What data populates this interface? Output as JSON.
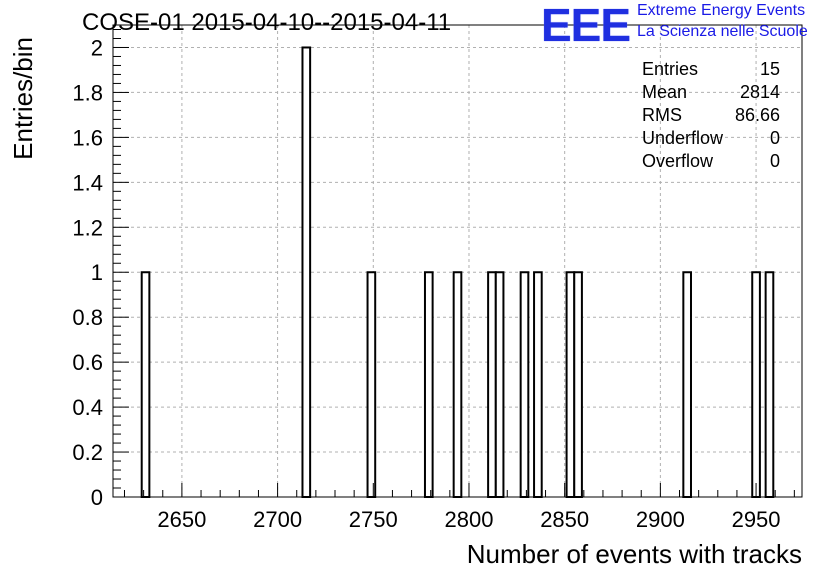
{
  "title": "COSE-01 2015-04-10--2015-04-11",
  "logo": {
    "mark": "EEE",
    "line1": "Extreme Energy Events",
    "line2": "La Scienza nelle Scuole"
  },
  "stats": [
    {
      "key": "Entries",
      "value": "15"
    },
    {
      "key": "Mean",
      "value": "2814"
    },
    {
      "key": "RMS",
      "value": "86.66"
    },
    {
      "key": "Underflow",
      "value": "0"
    },
    {
      "key": "Overflow",
      "value": "0"
    }
  ],
  "chart_data": {
    "type": "bar",
    "title": "COSE-01 2015-04-10--2015-04-11",
    "xlabel": "Number of events with tracks",
    "ylabel": "Entries/bin",
    "xlim": [
      2614,
      2974
    ],
    "ylim": [
      0,
      2.1
    ],
    "bin_width": 4,
    "grid": true,
    "xticks": [
      "2650",
      "2700",
      "2750",
      "2800",
      "2850",
      "2900",
      "2950"
    ],
    "yticks": [
      "0",
      "0.2",
      "0.4",
      "0.6",
      "0.8",
      "1",
      "1.2",
      "1.4",
      "1.6",
      "1.8",
      "2"
    ],
    "bins": [
      {
        "x": 2629,
        "count": 1
      },
      {
        "x": 2713,
        "count": 2
      },
      {
        "x": 2747,
        "count": 1
      },
      {
        "x": 2777,
        "count": 1
      },
      {
        "x": 2792,
        "count": 1
      },
      {
        "x": 2810,
        "count": 1
      },
      {
        "x": 2814,
        "count": 1
      },
      {
        "x": 2827,
        "count": 1
      },
      {
        "x": 2834,
        "count": 1
      },
      {
        "x": 2851,
        "count": 1
      },
      {
        "x": 2855,
        "count": 1
      },
      {
        "x": 2912,
        "count": 1
      },
      {
        "x": 2948,
        "count": 1
      },
      {
        "x": 2955,
        "count": 1
      }
    ]
  }
}
